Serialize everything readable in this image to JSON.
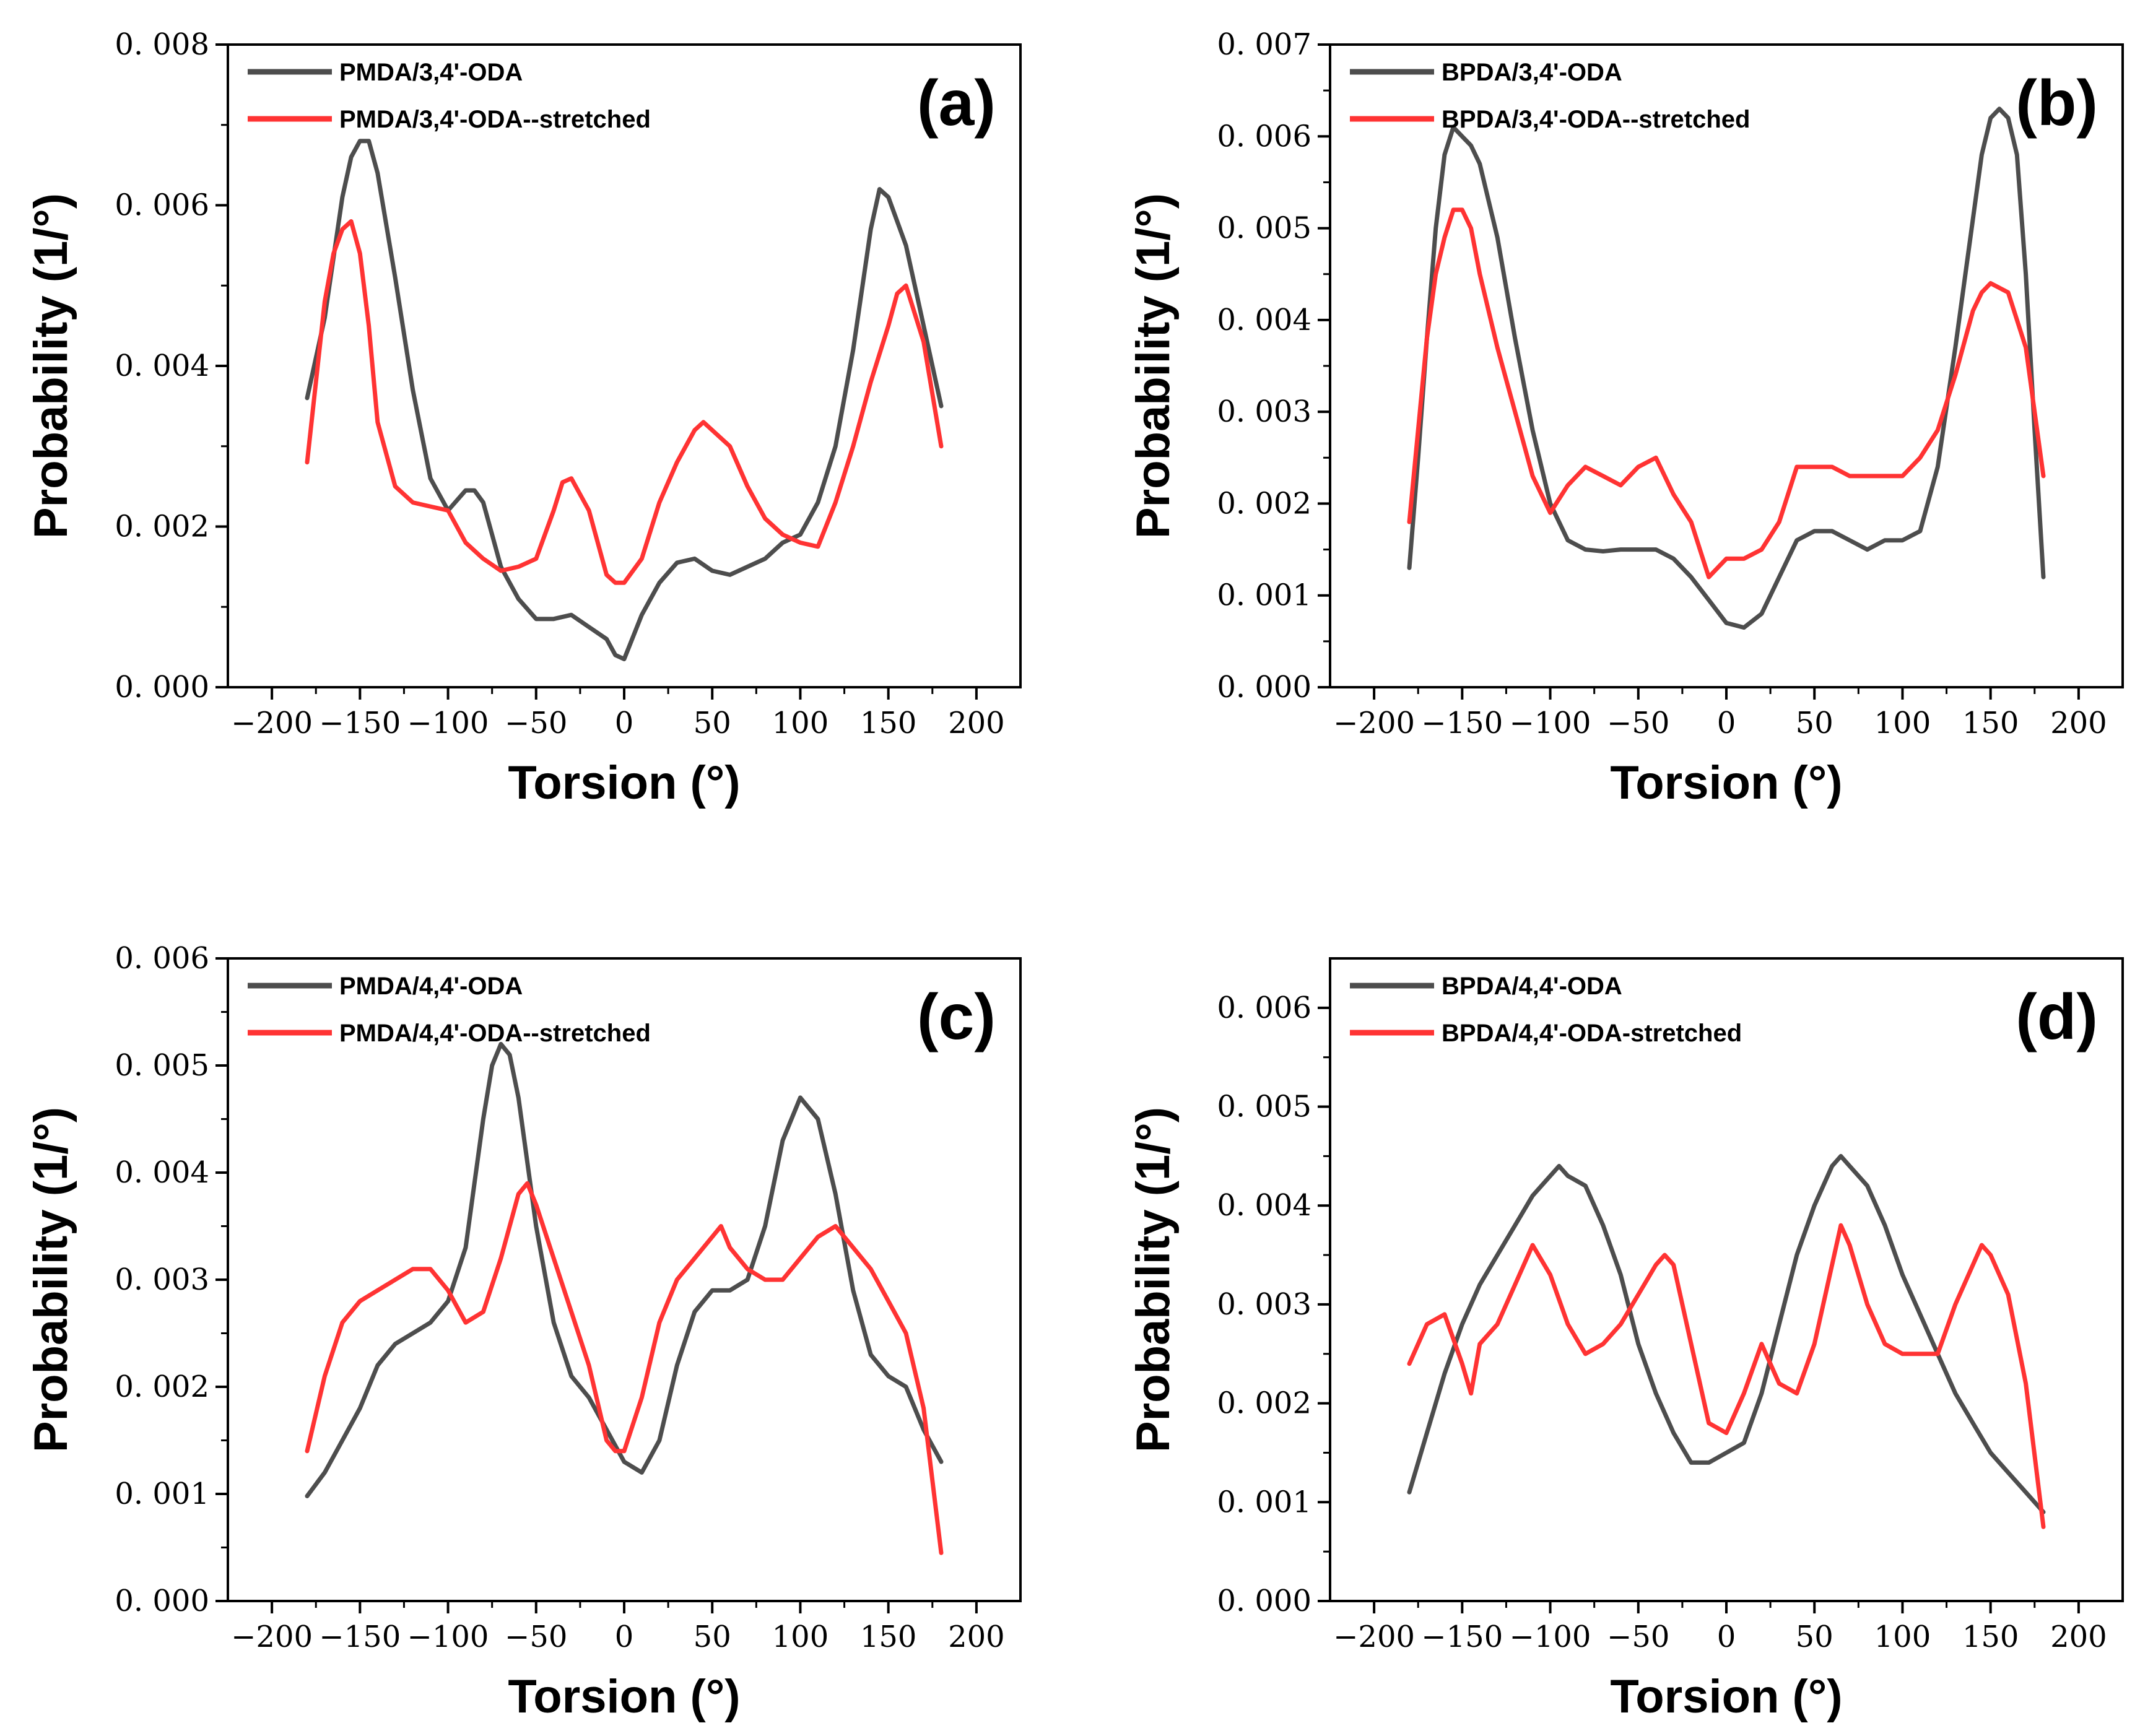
{
  "colors": {
    "gray": "#4d4d4d",
    "red": "#ff3333",
    "axis": "#000000"
  },
  "chart_data": [
    {
      "type": "line",
      "panel_label": "(a)",
      "xlabel": "Torsion (°)",
      "ylabel": "Probability (1/°)",
      "xlim": [
        -225,
        225
      ],
      "ylim": [
        0,
        0.008
      ],
      "xticks": [
        -200,
        -150,
        -100,
        -50,
        0,
        50,
        100,
        150,
        200
      ],
      "xtick_labels": [
        "−200",
        "−150",
        "−100",
        "−50",
        "0",
        "50",
        "100",
        "150",
        "200"
      ],
      "yticks": [
        0,
        0.002,
        0.004,
        0.006,
        0.008
      ],
      "ytick_labels": [
        "0. 000",
        "0. 002",
        "0. 004",
        "0. 006",
        "0. 008"
      ],
      "legend_position": "top-left",
      "series": [
        {
          "name": "PMDA/3,4'-ODA",
          "color": "#4d4d4d",
          "x": [
            -180,
            -170,
            -160,
            -155,
            -150,
            -145,
            -140,
            -130,
            -120,
            -110,
            -100,
            -90,
            -85,
            -80,
            -75,
            -70,
            -60,
            -50,
            -40,
            -30,
            -20,
            -10,
            -5,
            0,
            10,
            20,
            30,
            40,
            50,
            60,
            70,
            80,
            90,
            100,
            110,
            120,
            130,
            140,
            145,
            150,
            160,
            170,
            180
          ],
          "y": [
            0.0036,
            0.0046,
            0.0061,
            0.0066,
            0.0068,
            0.0068,
            0.0064,
            0.0051,
            0.0037,
            0.0026,
            0.0022,
            0.00245,
            0.00245,
            0.0023,
            0.0019,
            0.0015,
            0.0011,
            0.00085,
            0.00085,
            0.0009,
            0.00075,
            0.0006,
            0.0004,
            0.00035,
            0.0009,
            0.0013,
            0.00155,
            0.0016,
            0.00145,
            0.0014,
            0.0015,
            0.0016,
            0.0018,
            0.0019,
            0.0023,
            0.003,
            0.0042,
            0.0057,
            0.0062,
            0.0061,
            0.0055,
            0.0045,
            0.0035
          ]
        },
        {
          "name": "PMDA/3,4'-ODA--stretched",
          "color": "#ff3333",
          "x": [
            -180,
            -175,
            -170,
            -165,
            -160,
            -155,
            -150,
            -145,
            -140,
            -130,
            -120,
            -110,
            -100,
            -90,
            -80,
            -70,
            -60,
            -50,
            -40,
            -35,
            -30,
            -20,
            -10,
            -5,
            0,
            10,
            20,
            30,
            40,
            45,
            50,
            60,
            70,
            80,
            90,
            100,
            110,
            120,
            130,
            140,
            150,
            155,
            160,
            170,
            180
          ],
          "y": [
            0.0028,
            0.0038,
            0.0048,
            0.0054,
            0.0057,
            0.0058,
            0.0054,
            0.0045,
            0.0033,
            0.0025,
            0.0023,
            0.00225,
            0.0022,
            0.0018,
            0.0016,
            0.00145,
            0.0015,
            0.0016,
            0.0022,
            0.00255,
            0.0026,
            0.0022,
            0.0014,
            0.0013,
            0.0013,
            0.0016,
            0.0023,
            0.0028,
            0.0032,
            0.0033,
            0.0032,
            0.003,
            0.0025,
            0.0021,
            0.0019,
            0.0018,
            0.00175,
            0.0023,
            0.003,
            0.0038,
            0.0045,
            0.0049,
            0.005,
            0.0043,
            0.003
          ]
        }
      ]
    },
    {
      "type": "line",
      "panel_label": "(b)",
      "xlabel": "Torsion (°)",
      "ylabel": "Probability (1/°)",
      "xlim": [
        -225,
        225
      ],
      "ylim": [
        0,
        0.007
      ],
      "xticks": [
        -200,
        -150,
        -100,
        -50,
        0,
        50,
        100,
        150,
        200
      ],
      "xtick_labels": [
        "−200",
        "−150",
        "−100",
        "−50",
        "0",
        "50",
        "100",
        "150",
        "200"
      ],
      "yticks": [
        0,
        0.001,
        0.002,
        0.003,
        0.004,
        0.005,
        0.006,
        0.007
      ],
      "ytick_labels": [
        "0. 000",
        "0. 001",
        "0. 002",
        "0. 003",
        "0. 004",
        "0. 005",
        "0. 006",
        "0. 007"
      ],
      "legend_position": "top-left",
      "series": [
        {
          "name": "BPDA/3,4'-ODA",
          "color": "#4d4d4d",
          "x": [
            -180,
            -175,
            -170,
            -165,
            -160,
            -155,
            -150,
            -145,
            -140,
            -130,
            -120,
            -110,
            -100,
            -90,
            -80,
            -70,
            -60,
            -50,
            -40,
            -30,
            -20,
            -10,
            0,
            10,
            20,
            30,
            40,
            50,
            60,
            70,
            80,
            90,
            100,
            110,
            120,
            130,
            140,
            145,
            150,
            155,
            160,
            165,
            170,
            175,
            180
          ],
          "y": [
            0.0013,
            0.0025,
            0.0038,
            0.005,
            0.0058,
            0.0061,
            0.006,
            0.0059,
            0.0057,
            0.0049,
            0.0038,
            0.0028,
            0.002,
            0.0016,
            0.0015,
            0.00148,
            0.0015,
            0.0015,
            0.0015,
            0.0014,
            0.0012,
            0.00095,
            0.0007,
            0.00065,
            0.0008,
            0.0012,
            0.0016,
            0.0017,
            0.0017,
            0.0016,
            0.0015,
            0.0016,
            0.0016,
            0.0017,
            0.0024,
            0.0037,
            0.0051,
            0.0058,
            0.0062,
            0.0063,
            0.0062,
            0.0058,
            0.0045,
            0.0028,
            0.0012
          ]
        },
        {
          "name": "BPDA/3,4'-ODA--stretched",
          "color": "#ff3333",
          "x": [
            -180,
            -175,
            -170,
            -165,
            -160,
            -155,
            -150,
            -145,
            -140,
            -130,
            -120,
            -110,
            -100,
            -90,
            -80,
            -70,
            -60,
            -50,
            -40,
            -30,
            -20,
            -15,
            -10,
            0,
            10,
            20,
            30,
            40,
            50,
            60,
            70,
            80,
            90,
            100,
            110,
            120,
            130,
            140,
            145,
            150,
            160,
            170,
            180
          ],
          "y": [
            0.0018,
            0.0028,
            0.0038,
            0.0045,
            0.0049,
            0.0052,
            0.0052,
            0.005,
            0.0045,
            0.0037,
            0.003,
            0.0023,
            0.0019,
            0.0022,
            0.0024,
            0.0023,
            0.0022,
            0.0024,
            0.0025,
            0.0021,
            0.0018,
            0.0015,
            0.0012,
            0.0014,
            0.0014,
            0.0015,
            0.0018,
            0.0024,
            0.0024,
            0.0024,
            0.0023,
            0.0023,
            0.0023,
            0.0023,
            0.0025,
            0.0028,
            0.0034,
            0.0041,
            0.0043,
            0.0044,
            0.0043,
            0.0037,
            0.0023
          ]
        }
      ]
    },
    {
      "type": "line",
      "panel_label": "(c)",
      "xlabel": "Torsion (°)",
      "ylabel": "Probability (1/°)",
      "xlim": [
        -225,
        225
      ],
      "ylim": [
        0,
        0.006
      ],
      "xticks": [
        -200,
        -150,
        -100,
        -50,
        0,
        50,
        100,
        150,
        200
      ],
      "xtick_labels": [
        "−200",
        "−150",
        "−100",
        "−50",
        "0",
        "50",
        "100",
        "150",
        "200"
      ],
      "yticks": [
        0,
        0.001,
        0.002,
        0.003,
        0.004,
        0.005,
        0.006
      ],
      "ytick_labels": [
        "0. 000",
        "0. 001",
        "0. 002",
        "0. 003",
        "0. 004",
        "0. 005",
        "0. 006"
      ],
      "legend_position": "top-left",
      "series": [
        {
          "name": "PMDA/4,4'-ODA",
          "color": "#4d4d4d",
          "x": [
            -180,
            -170,
            -160,
            -150,
            -140,
            -130,
            -120,
            -110,
            -100,
            -90,
            -80,
            -75,
            -70,
            -65,
            -60,
            -50,
            -40,
            -30,
            -20,
            -10,
            0,
            10,
            20,
            30,
            40,
            50,
            60,
            70,
            80,
            90,
            100,
            110,
            120,
            130,
            140,
            150,
            160,
            170,
            180
          ],
          "y": [
            0.00098,
            0.0012,
            0.0015,
            0.0018,
            0.0022,
            0.0024,
            0.0025,
            0.0026,
            0.0028,
            0.0033,
            0.0045,
            0.005,
            0.0052,
            0.0051,
            0.0047,
            0.0035,
            0.0026,
            0.0021,
            0.0019,
            0.0016,
            0.0013,
            0.0012,
            0.0015,
            0.0022,
            0.0027,
            0.0029,
            0.0029,
            0.003,
            0.0035,
            0.0043,
            0.0047,
            0.0045,
            0.0038,
            0.0029,
            0.0023,
            0.0021,
            0.002,
            0.0016,
            0.0013
          ]
        },
        {
          "name": "PMDA/4,4'-ODA--stretched",
          "color": "#ff3333",
          "x": [
            -180,
            -170,
            -160,
            -150,
            -140,
            -130,
            -120,
            -110,
            -100,
            -90,
            -80,
            -70,
            -60,
            -55,
            -50,
            -40,
            -30,
            -20,
            -10,
            -5,
            0,
            10,
            20,
            30,
            40,
            50,
            55,
            60,
            70,
            80,
            90,
            100,
            110,
            120,
            130,
            140,
            150,
            160,
            170,
            180
          ],
          "y": [
            0.0014,
            0.0021,
            0.0026,
            0.0028,
            0.0029,
            0.003,
            0.0031,
            0.0031,
            0.0029,
            0.0026,
            0.0027,
            0.0032,
            0.0038,
            0.0039,
            0.0037,
            0.0032,
            0.0027,
            0.0022,
            0.0015,
            0.0014,
            0.0014,
            0.0019,
            0.0026,
            0.003,
            0.0032,
            0.0034,
            0.0035,
            0.0033,
            0.0031,
            0.003,
            0.003,
            0.0032,
            0.0034,
            0.0035,
            0.0033,
            0.0031,
            0.0028,
            0.0025,
            0.0018,
            0.00045
          ]
        }
      ]
    },
    {
      "type": "line",
      "panel_label": "(d)",
      "xlabel": "Torsion (°)",
      "ylabel": "Probability (1/°)",
      "xlim": [
        -225,
        225
      ],
      "ylim": [
        0,
        0.0065
      ],
      "xticks": [
        -200,
        -150,
        -100,
        -50,
        0,
        50,
        100,
        150,
        200
      ],
      "xtick_labels": [
        "−200",
        "−150",
        "−100",
        "−50",
        "0",
        "50",
        "100",
        "150",
        "200"
      ],
      "yticks": [
        0,
        0.001,
        0.002,
        0.003,
        0.004,
        0.005,
        0.006
      ],
      "ytick_labels": [
        "0. 000",
        "0. 001",
        "0. 002",
        "0. 003",
        "0. 004",
        "0. 005",
        "0. 006"
      ],
      "legend_position": "top-left",
      "series": [
        {
          "name": "BPDA/4,4'-ODA",
          "color": "#4d4d4d",
          "x": [
            -180,
            -170,
            -160,
            -150,
            -140,
            -130,
            -120,
            -110,
            -100,
            -95,
            -90,
            -80,
            -70,
            -60,
            -50,
            -40,
            -30,
            -20,
            -10,
            0,
            10,
            20,
            30,
            40,
            50,
            60,
            65,
            70,
            80,
            90,
            100,
            110,
            120,
            130,
            140,
            150,
            160,
            170,
            180
          ],
          "y": [
            0.0011,
            0.0017,
            0.0023,
            0.0028,
            0.0032,
            0.0035,
            0.0038,
            0.0041,
            0.0043,
            0.0044,
            0.0043,
            0.0042,
            0.0038,
            0.0033,
            0.0026,
            0.0021,
            0.0017,
            0.0014,
            0.0014,
            0.0015,
            0.0016,
            0.0021,
            0.0028,
            0.0035,
            0.004,
            0.0044,
            0.0045,
            0.0044,
            0.0042,
            0.0038,
            0.0033,
            0.0029,
            0.0025,
            0.0021,
            0.0018,
            0.0015,
            0.0013,
            0.0011,
            0.0009
          ]
        },
        {
          "name": "BPDA/4,4'-ODA-stretched",
          "color": "#ff3333",
          "x": [
            -180,
            -170,
            -160,
            -150,
            -145,
            -140,
            -130,
            -120,
            -110,
            -100,
            -90,
            -80,
            -70,
            -60,
            -50,
            -40,
            -35,
            -30,
            -20,
            -10,
            0,
            10,
            20,
            30,
            40,
            50,
            60,
            65,
            70,
            80,
            90,
            100,
            110,
            120,
            130,
            140,
            145,
            150,
            160,
            170,
            180
          ],
          "y": [
            0.0024,
            0.0028,
            0.0029,
            0.0024,
            0.0021,
            0.0026,
            0.0028,
            0.0032,
            0.0036,
            0.0033,
            0.0028,
            0.0025,
            0.0026,
            0.0028,
            0.0031,
            0.0034,
            0.0035,
            0.0034,
            0.0026,
            0.0018,
            0.0017,
            0.0021,
            0.0026,
            0.0022,
            0.0021,
            0.0026,
            0.0034,
            0.0038,
            0.0036,
            0.003,
            0.0026,
            0.0025,
            0.0025,
            0.0025,
            0.003,
            0.0034,
            0.0036,
            0.0035,
            0.0031,
            0.0022,
            0.00075
          ]
        }
      ]
    }
  ]
}
